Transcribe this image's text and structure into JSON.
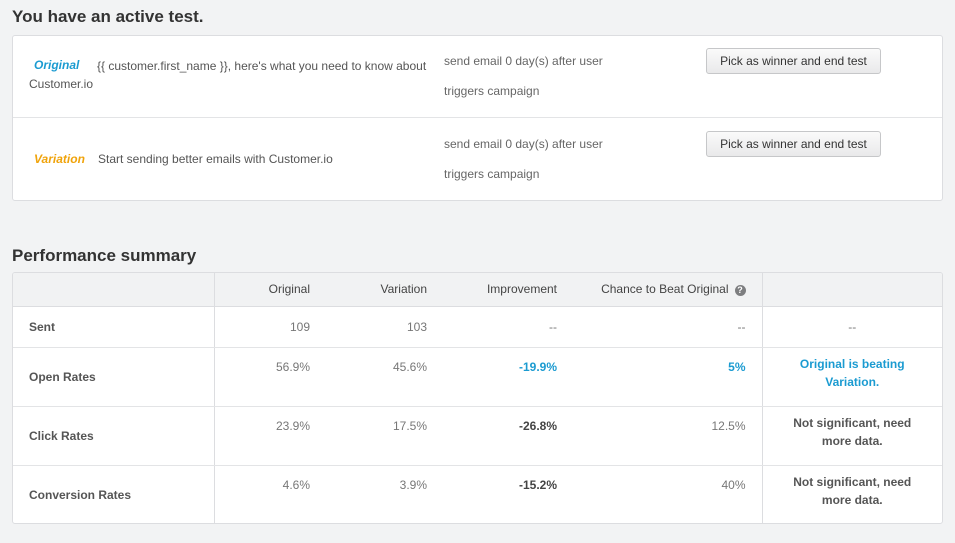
{
  "active_test": {
    "heading": "You have an active test.",
    "rows": [
      {
        "tag": "Original",
        "subject": "{{ customer.first_name }}, here's what you need to know about Customer.io",
        "schedule": "send email 0 day(s) after user triggers campaign",
        "button": "Pick as winner and end test"
      },
      {
        "tag": "Variation",
        "subject": "Start sending better emails with Customer.io",
        "schedule": "send email 0 day(s) after user triggers campaign",
        "button": "Pick as winner and end test"
      }
    ],
    "colors": {
      "original": "#1b9bd1",
      "variation": "#f0a30a"
    }
  },
  "performance": {
    "heading": "Performance summary",
    "columns": [
      "",
      "Original",
      "Variation",
      "Improvement",
      "Chance to Beat Original",
      ""
    ],
    "info_icon": "question-circle-icon",
    "rows": [
      {
        "label": "Sent",
        "original": "109",
        "variation": "103",
        "improvement": "--",
        "chance": "--",
        "verdict": "--"
      },
      {
        "label": "Open Rates",
        "original": "56.9%",
        "variation": "45.6%",
        "improvement": "-19.9%",
        "chance": "5%",
        "verdict": "Original is beating Variation."
      },
      {
        "label": "Click Rates",
        "original": "23.9%",
        "variation": "17.5%",
        "improvement": "-26.8%",
        "chance": "12.5%",
        "verdict": "Not significant, need more data."
      },
      {
        "label": "Conversion Rates",
        "original": "4.6%",
        "variation": "3.9%",
        "improvement": "-15.2%",
        "chance": "40%",
        "verdict": "Not significant, need more data."
      }
    ]
  }
}
